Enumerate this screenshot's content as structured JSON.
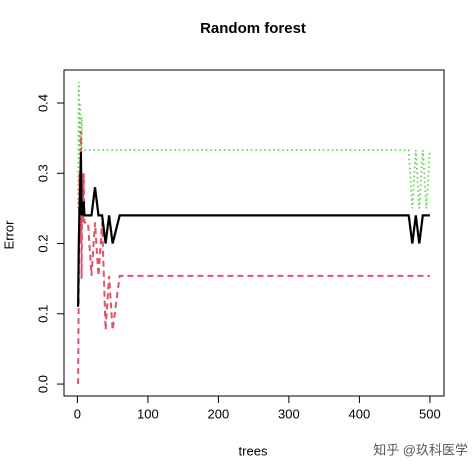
{
  "chart_data": {
    "type": "line",
    "title": "Random forest",
    "x_label": "trees",
    "y_label": "Error",
    "x": [
      1,
      2,
      3,
      4,
      5,
      6,
      7,
      8,
      9,
      10,
      12,
      15,
      20,
      25,
      30,
      35,
      40,
      45,
      50,
      60,
      100,
      200,
      300,
      400,
      470,
      475,
      480,
      485,
      490,
      495,
      500
    ],
    "series": [
      {
        "color": "#000000",
        "dash": "none",
        "width": 2.2,
        "values": [
          0.11,
          0.2,
          0.25,
          0.28,
          0.33,
          0.24,
          0.26,
          0.24,
          0.26,
          0.24,
          0.24,
          0.24,
          0.24,
          0.28,
          0.24,
          0.24,
          0.2,
          0.24,
          0.2,
          0.24,
          0.24,
          0.24,
          0.24,
          0.24,
          0.24,
          0.2,
          0.24,
          0.2,
          0.24,
          0.24,
          0.24
        ]
      },
      {
        "color": "#df536b",
        "dash": "6 4",
        "width": 2,
        "values": [
          0,
          0.15,
          0.3,
          0.2,
          0.36,
          0.15,
          0.3,
          0.23,
          0.3,
          0.23,
          0.23,
          0.23,
          0.154,
          0.23,
          0.154,
          0.23,
          0.077,
          0.154,
          0.077,
          0.154,
          0.154,
          0.154,
          0.154,
          0.154,
          0.154,
          0.154,
          0.154,
          0.154,
          0.154,
          0.154,
          0.154
        ]
      },
      {
        "color": "#61d04f",
        "dash": "1.5 3",
        "width": 1.8,
        "values": [
          0.25,
          0.43,
          0.33,
          0.4,
          0.33,
          0.38,
          0.33,
          0.333,
          0.333,
          0.333,
          0.333,
          0.333,
          0.333,
          0.333,
          0.333,
          0.333,
          0.333,
          0.333,
          0.333,
          0.333,
          0.333,
          0.333,
          0.333,
          0.333,
          0.333,
          0.25,
          0.333,
          0.25,
          0.333,
          0.25,
          0.333
        ]
      }
    ],
    "xlim": [
      -19,
      520
    ],
    "xticks": [
      0,
      100,
      200,
      300,
      400,
      500
    ],
    "ylim": [
      -0.017,
      0.447
    ],
    "yticks": [
      {
        "value": 0,
        "label": "0.0"
      },
      0.1,
      0.2,
      0.3,
      0.4
    ],
    "watermark": "知乎 @玖科医学"
  }
}
